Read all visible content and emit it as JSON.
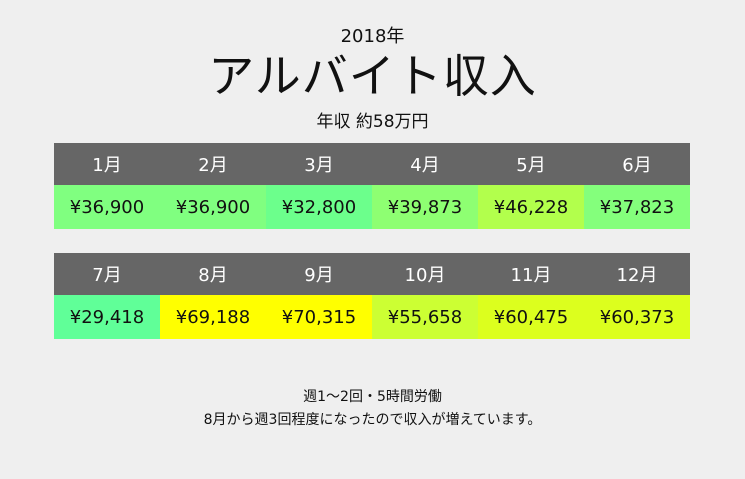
{
  "header": {
    "year": "2018年",
    "title": "アルバイト収入",
    "subtitle": "年収 約58万円"
  },
  "months": [
    {
      "label": "1月",
      "value": "¥36,900",
      "color": "#80ff80"
    },
    {
      "label": "2月",
      "value": "¥36,900",
      "color": "#80ff80"
    },
    {
      "label": "3月",
      "value": "¥32,800",
      "color": "#6cff8c"
    },
    {
      "label": "4月",
      "value": "¥39,873",
      "color": "#8eff72"
    },
    {
      "label": "5月",
      "value": "¥46,228",
      "color": "#b2ff4c"
    },
    {
      "label": "6月",
      "value": "¥37,823",
      "color": "#84ff7c"
    },
    {
      "label": "7月",
      "value": "¥29,418",
      "color": "#60ff98"
    },
    {
      "label": "8月",
      "value": "¥69,188",
      "color": "#ffff00"
    },
    {
      "label": "9月",
      "value": "¥70,315",
      "color": "#ffff00"
    },
    {
      "label": "10月",
      "value": "¥55,658",
      "color": "#ccff33"
    },
    {
      "label": "11月",
      "value": "¥60,475",
      "color": "#dcff1e"
    },
    {
      "label": "12月",
      "value": "¥60,373",
      "color": "#dcff1e"
    }
  ],
  "notes": {
    "line1": "週1～2回・5時間労働",
    "line2": "8月から週3回程度になったので収入が増えています。"
  }
}
